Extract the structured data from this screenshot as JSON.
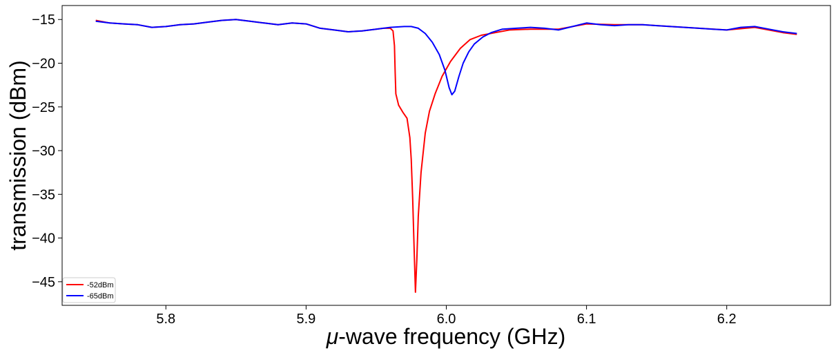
{
  "chart_data": {
    "type": "line",
    "xlabel_prefix": "μ",
    "xlabel_rest": "-wave frequency (GHz)",
    "ylabel": "transmission (dBm)",
    "xlim": [
      5.726,
      6.274
    ],
    "ylim": [
      -47.7,
      -13.4
    ],
    "xticks": [
      5.8,
      5.9,
      6.0,
      6.1,
      6.2
    ],
    "xtick_labels": [
      "5.8",
      "5.9",
      "6.0",
      "6.1",
      "6.2"
    ],
    "yticks": [
      -15,
      -20,
      -25,
      -30,
      -35,
      -40,
      -45
    ],
    "ytick_labels": [
      "−15",
      "−20",
      "−25",
      "−30",
      "−35",
      "−40",
      "−45"
    ],
    "grid": false,
    "legend_position": "lower-left",
    "series": [
      {
        "name": "-52dBm",
        "color": "#ff0000",
        "points": [
          [
            5.75,
            -15.1
          ],
          [
            5.76,
            -15.4
          ],
          [
            5.77,
            -15.5
          ],
          [
            5.78,
            -15.6
          ],
          [
            5.79,
            -15.9
          ],
          [
            5.8,
            -15.8
          ],
          [
            5.81,
            -15.6
          ],
          [
            5.82,
            -15.5
          ],
          [
            5.83,
            -15.3
          ],
          [
            5.84,
            -15.1
          ],
          [
            5.85,
            -15.0
          ],
          [
            5.86,
            -15.2
          ],
          [
            5.87,
            -15.4
          ],
          [
            5.88,
            -15.6
          ],
          [
            5.89,
            -15.4
          ],
          [
            5.9,
            -15.5
          ],
          [
            5.91,
            -16.0
          ],
          [
            5.92,
            -16.2
          ],
          [
            5.93,
            -16.4
          ],
          [
            5.94,
            -16.3
          ],
          [
            5.95,
            -16.1
          ],
          [
            5.955,
            -16.0
          ],
          [
            5.96,
            -16.0
          ],
          [
            5.962,
            -16.3
          ],
          [
            5.963,
            -18.0
          ],
          [
            5.9635,
            -21.0
          ],
          [
            5.964,
            -23.5
          ],
          [
            5.966,
            -24.8
          ],
          [
            5.969,
            -25.6
          ],
          [
            5.972,
            -26.3
          ],
          [
            5.974,
            -28.5
          ],
          [
            5.975,
            -31.0
          ],
          [
            5.976,
            -35.5
          ],
          [
            5.977,
            -41.0
          ],
          [
            5.978,
            -46.2
          ],
          [
            5.979,
            -42.5
          ],
          [
            5.98,
            -37.5
          ],
          [
            5.982,
            -32.5
          ],
          [
            5.985,
            -28.0
          ],
          [
            5.988,
            -25.5
          ],
          [
            5.992,
            -23.5
          ],
          [
            5.997,
            -21.5
          ],
          [
            6.003,
            -19.8
          ],
          [
            6.01,
            -18.3
          ],
          [
            6.017,
            -17.3
          ],
          [
            6.025,
            -16.8
          ],
          [
            6.035,
            -16.5
          ],
          [
            6.045,
            -16.2
          ],
          [
            6.06,
            -16.1
          ],
          [
            6.08,
            -16.1
          ],
          [
            6.1,
            -15.5
          ],
          [
            6.12,
            -15.6
          ],
          [
            6.14,
            -15.6
          ],
          [
            6.16,
            -15.8
          ],
          [
            6.18,
            -16.0
          ],
          [
            6.2,
            -16.2
          ],
          [
            6.22,
            -15.9
          ],
          [
            6.24,
            -16.5
          ],
          [
            6.25,
            -16.7
          ]
        ]
      },
      {
        "name": "-65dBm",
        "color": "#0000ff",
        "points": [
          [
            5.75,
            -15.2
          ],
          [
            5.76,
            -15.4
          ],
          [
            5.77,
            -15.5
          ],
          [
            5.78,
            -15.6
          ],
          [
            5.79,
            -15.9
          ],
          [
            5.8,
            -15.8
          ],
          [
            5.81,
            -15.6
          ],
          [
            5.82,
            -15.5
          ],
          [
            5.83,
            -15.3
          ],
          [
            5.84,
            -15.1
          ],
          [
            5.85,
            -15.0
          ],
          [
            5.86,
            -15.2
          ],
          [
            5.87,
            -15.4
          ],
          [
            5.88,
            -15.6
          ],
          [
            5.89,
            -15.4
          ],
          [
            5.9,
            -15.5
          ],
          [
            5.91,
            -16.0
          ],
          [
            5.92,
            -16.2
          ],
          [
            5.93,
            -16.4
          ],
          [
            5.94,
            -16.3
          ],
          [
            5.95,
            -16.1
          ],
          [
            5.96,
            -15.9
          ],
          [
            5.97,
            -15.8
          ],
          [
            5.975,
            -15.8
          ],
          [
            5.98,
            -16.0
          ],
          [
            5.985,
            -16.6
          ],
          [
            5.99,
            -17.6
          ],
          [
            5.995,
            -19.0
          ],
          [
            5.999,
            -20.8
          ],
          [
            6.002,
            -22.8
          ],
          [
            6.004,
            -23.6
          ],
          [
            6.006,
            -23.2
          ],
          [
            6.009,
            -21.5
          ],
          [
            6.012,
            -20.0
          ],
          [
            6.016,
            -18.7
          ],
          [
            6.02,
            -17.8
          ],
          [
            6.026,
            -17.0
          ],
          [
            6.032,
            -16.5
          ],
          [
            6.04,
            -16.1
          ],
          [
            6.05,
            -16.0
          ],
          [
            6.06,
            -15.9
          ],
          [
            6.07,
            -16.0
          ],
          [
            6.08,
            -16.2
          ],
          [
            6.09,
            -15.8
          ],
          [
            6.1,
            -15.4
          ],
          [
            6.11,
            -15.6
          ],
          [
            6.12,
            -15.7
          ],
          [
            6.13,
            -15.6
          ],
          [
            6.14,
            -15.6
          ],
          [
            6.15,
            -15.7
          ],
          [
            6.16,
            -15.8
          ],
          [
            6.17,
            -15.9
          ],
          [
            6.18,
            -16.0
          ],
          [
            6.19,
            -16.1
          ],
          [
            6.2,
            -16.2
          ],
          [
            6.21,
            -15.9
          ],
          [
            6.22,
            -15.8
          ],
          [
            6.23,
            -16.1
          ],
          [
            6.24,
            -16.4
          ],
          [
            6.25,
            -16.6
          ]
        ]
      }
    ]
  }
}
